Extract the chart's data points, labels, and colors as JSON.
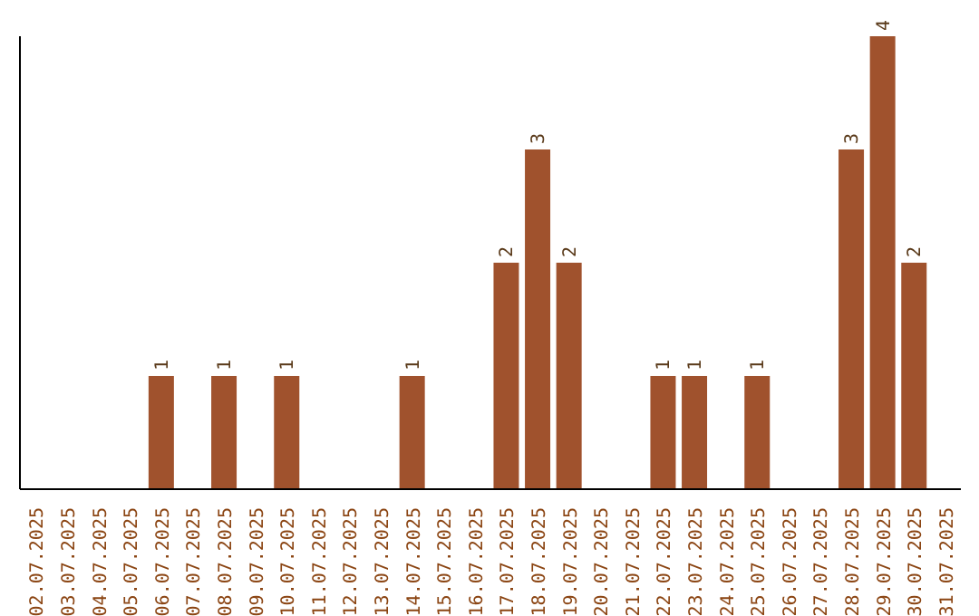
{
  "chart_data": {
    "type": "bar",
    "categories": [
      "02.07.2025",
      "03.07.2025",
      "04.07.2025",
      "05.07.2025",
      "06.07.2025",
      "07.07.2025",
      "08.07.2025",
      "09.07.2025",
      "10.07.2025",
      "11.07.2025",
      "12.07.2025",
      "13.07.2025",
      "14.07.2025",
      "15.07.2025",
      "16.07.2025",
      "17.07.2025",
      "18.07.2025",
      "19.07.2025",
      "20.07.2025",
      "21.07.2025",
      "22.07.2025",
      "23.07.2025",
      "24.07.2025",
      "25.07.2025",
      "26.07.2025",
      "27.07.2025",
      "28.07.2025",
      "29.07.2025",
      "30.07.2025",
      "31.07.2025"
    ],
    "values": [
      0,
      0,
      0,
      0,
      1,
      0,
      1,
      0,
      1,
      0,
      0,
      0,
      1,
      0,
      0,
      2,
      3,
      2,
      0,
      0,
      1,
      1,
      0,
      1,
      0,
      0,
      3,
      4,
      2,
      0
    ],
    "value_labels": [
      null,
      null,
      null,
      null,
      "1",
      null,
      "1",
      null,
      "1",
      null,
      null,
      null,
      "1",
      null,
      null,
      "2",
      "3",
      "2",
      null,
      null,
      "1",
      "1",
      null,
      "1",
      null,
      null,
      "3",
      "4",
      "2",
      null
    ],
    "color": "#a0522d"
  }
}
